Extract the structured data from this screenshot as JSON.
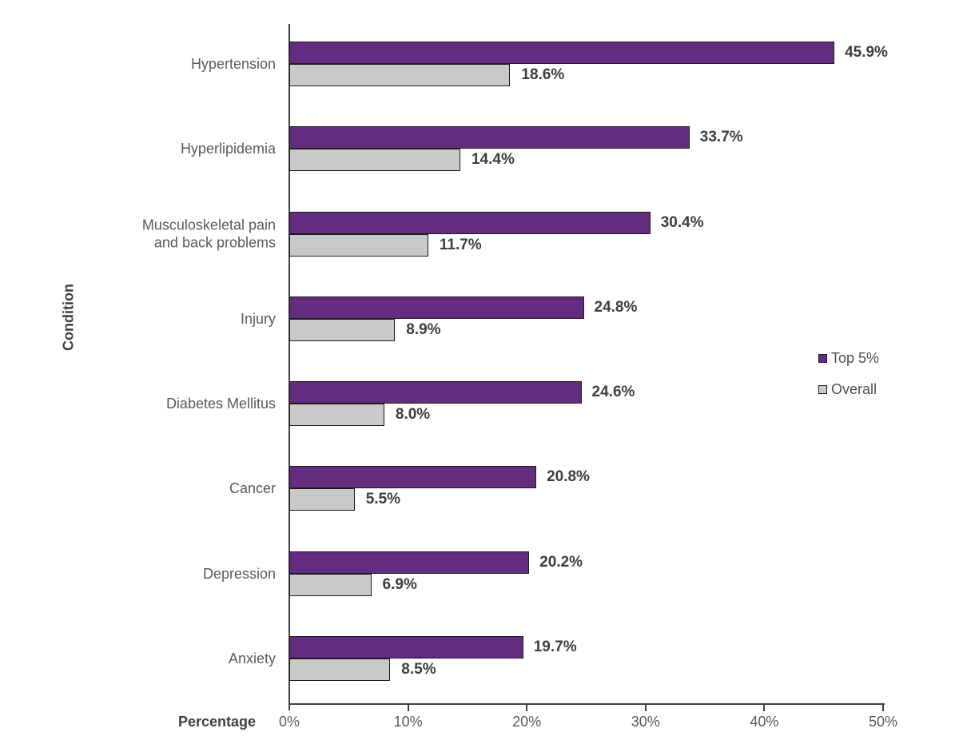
{
  "chart_data": {
    "type": "bar",
    "orientation": "horizontal",
    "xlabel": "Percentage",
    "ylabel": "Condition",
    "xlim": [
      0,
      50
    ],
    "xtick_labels": [
      "0%",
      "10%",
      "20%",
      "30%",
      "40%",
      "50%"
    ],
    "grid": false,
    "legend_position": "right-middle",
    "categories": [
      "Hypertension",
      "Hyperlipidemia",
      "Musculoskeletal pain and back problems",
      "Injury",
      "Diabetes Mellitus",
      "Cancer",
      "Depression",
      "Anxiety"
    ],
    "series": [
      {
        "name": "Top 5%",
        "color": "#632c7e",
        "values": [
          45.9,
          33.7,
          30.4,
          24.8,
          24.6,
          20.8,
          20.2,
          19.7
        ],
        "labels": [
          "45.9%",
          "33.7%",
          "30.4%",
          "24.8%",
          "24.6%",
          "20.8%",
          "20.2%",
          "19.7%"
        ]
      },
      {
        "name": "Overall",
        "color": "#c9c9c9",
        "values": [
          18.6,
          14.4,
          11.7,
          8.9,
          8.0,
          5.5,
          6.9,
          8.5
        ],
        "labels": [
          "18.6%",
          "14.4%",
          "11.7%",
          "8.9%",
          "8.0%",
          "5.5%",
          "6.9%",
          "8.5%"
        ]
      }
    ]
  },
  "colors": {
    "bar_border": "#1a1a1a",
    "axis": "#404040",
    "value_text": "#3d3d3d",
    "category_text": "#595959"
  }
}
